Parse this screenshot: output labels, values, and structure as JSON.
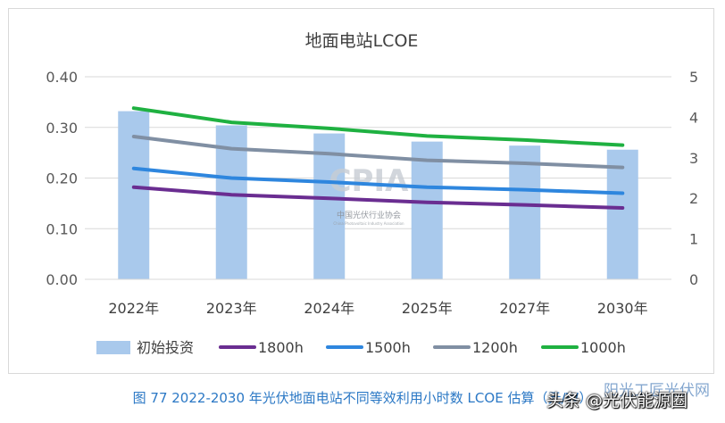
{
  "chart_data": {
    "type": "bar+line",
    "title": "地面电站LCOE",
    "categories": [
      "2022年",
      "2023年",
      "2024年",
      "2025年",
      "2027年",
      "2030年"
    ],
    "bars": {
      "name": "初始投资",
      "axis": "right",
      "values": [
        4.15,
        3.8,
        3.6,
        3.4,
        3.3,
        3.2
      ],
      "color": "#a9c9ec"
    },
    "series": [
      {
        "name": "1800h",
        "axis": "left",
        "values": [
          0.182,
          0.167,
          0.16,
          0.152,
          0.147,
          0.141
        ],
        "color": "#6a2d91"
      },
      {
        "name": "1500h",
        "axis": "left",
        "values": [
          0.219,
          0.2,
          0.192,
          0.182,
          0.177,
          0.17
        ],
        "color": "#2e86de"
      },
      {
        "name": "1200h",
        "axis": "left",
        "values": [
          0.282,
          0.258,
          0.248,
          0.235,
          0.229,
          0.221
        ],
        "color": "#808fa3"
      },
      {
        "name": "1000h",
        "axis": "left",
        "values": [
          0.338,
          0.31,
          0.298,
          0.283,
          0.275,
          0.265
        ],
        "color": "#1fb141"
      }
    ],
    "left_axis": {
      "range": [
        0,
        0.4
      ],
      "ticks": [
        "0.00",
        "0.10",
        "0.20",
        "0.30",
        "0.40"
      ]
    },
    "right_axis": {
      "range": [
        0,
        5
      ],
      "ticks": [
        "0",
        "1",
        "2",
        "3",
        "4",
        "5"
      ]
    },
    "grid": true,
    "legend": "bottom"
  },
  "watermark": {
    "logo": "CPIA",
    "org": "中国光伏行业协会",
    "sub": "China Photovoltaic Industry Association"
  },
  "caption": "图 77    2022-2030 年光伏地面电站不同等效利用小时数 LCOE 估算（元/W）",
  "overlay_text": "头条 @光伏能源圈",
  "overlay_text2": "阳光工匠光伏网"
}
